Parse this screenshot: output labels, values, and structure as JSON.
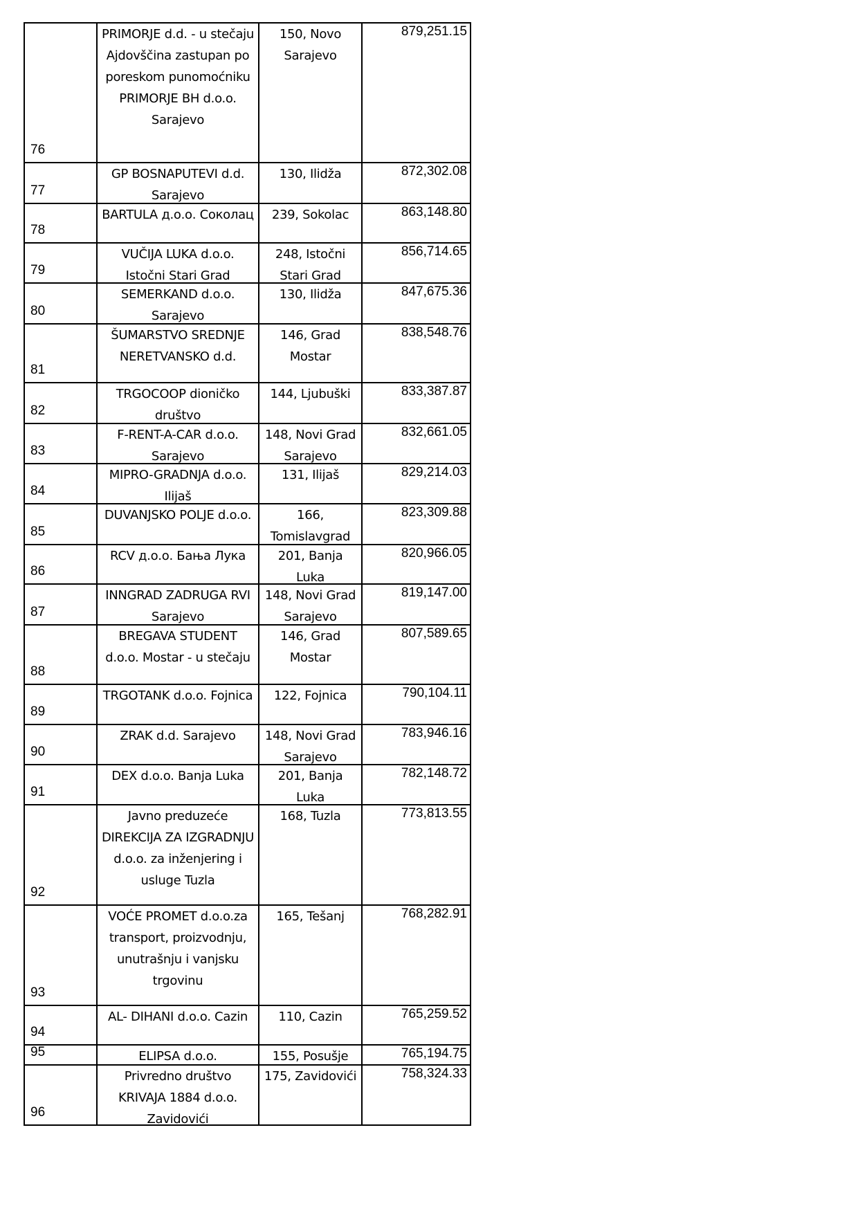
{
  "table": {
    "rows": [
      [
        "76",
        "PRIMORJE d.d. - u stečaju Ajdovščina zastupan po poreskom punomoćniku PRIMORJE BH d.o.o. Sarajevo",
        "150, Novo Sarajevo",
        "879,251.15"
      ],
      [
        "77",
        "GP BOSNAPUTEVI  d.d. Sarajevo",
        "130, Ilidža",
        "872,302.08"
      ],
      [
        "78",
        "BARTULA   д.о.о. Соколац",
        "239, Sokolac",
        "863,148.80"
      ],
      [
        "79",
        "VUČIJA LUKA d.o.o. Istočni Stari Grad",
        "248, Istočni Stari Grad",
        "856,714.65"
      ],
      [
        "80",
        "SEMERKAND d.o.o. Sarajevo",
        "130, Ilidža",
        "847,675.36"
      ],
      [
        "81",
        "ŠUMARSTVO SREDNJE NERETVANSKO d.d.",
        "146, Grad Mostar",
        "838,548.76"
      ],
      [
        "82",
        "TRGOCOOP dioničko društvo",
        "144, Ljubuški",
        "833,387.87"
      ],
      [
        "83",
        "F-RENT-A-CAR d.o.o. Sarajevo",
        "148, Novi Grad Sarajevo",
        "832,661.05"
      ],
      [
        "84",
        "MIPRO-GRADNJA d.o.o. Ilijaš",
        "131, Ilijaš",
        "829,214.03"
      ],
      [
        "85",
        "DUVANJSKO POLJE d.o.o.",
        "166, Tomislavgrad",
        "823,309.88"
      ],
      [
        "86",
        "RCV д.о.о. Бања Лука",
        "201, Banja Luka",
        "820,966.05"
      ],
      [
        "87",
        "INNGRAD ZADRUGA RVI Sarajevo",
        "148, Novi Grad Sarajevo",
        "819,147.00"
      ],
      [
        "88",
        "BREGAVA STUDENT d.o.o. Mostar - u stečaju",
        "146, Grad Mostar",
        "807,589.65"
      ],
      [
        "89",
        "TRGOTANK d.o.o. Fojnica",
        "122, Fojnica",
        "790,104.11"
      ],
      [
        "90",
        "ZRAK d.d. Sarajevo",
        "148, Novi Grad Sarajevo",
        "783,946.16"
      ],
      [
        "91",
        "DEX d.o.o. Banja Luka",
        "201, Banja Luka",
        "782,148.72"
      ],
      [
        "92",
        "Javno preduzeće DIREKCIJA ZA IZGRADNJU d.o.o. za inženjering i usluge Tuzla",
        "168, Tuzla",
        "773,813.55"
      ],
      [
        "93",
        "VOĆE PROMET d.o.o.za transport, proizvodnju, unutrašnju i vanjsku trgovinu",
        "165, Tešanj",
        "768,282.91"
      ],
      [
        "94",
        "AL- DIHANI d.o.o. Cazin",
        "110, Cazin",
        "765,259.52"
      ],
      [
        "95",
        "ELIPSA d.o.o.",
        "155, Posušje",
        "765,194.75"
      ],
      [
        "96",
        "Privredno društvo KRIVAJA 1884 d.o.o. Zavidovići",
        "175, Zavidovići",
        "758,324.33"
      ]
    ]
  }
}
